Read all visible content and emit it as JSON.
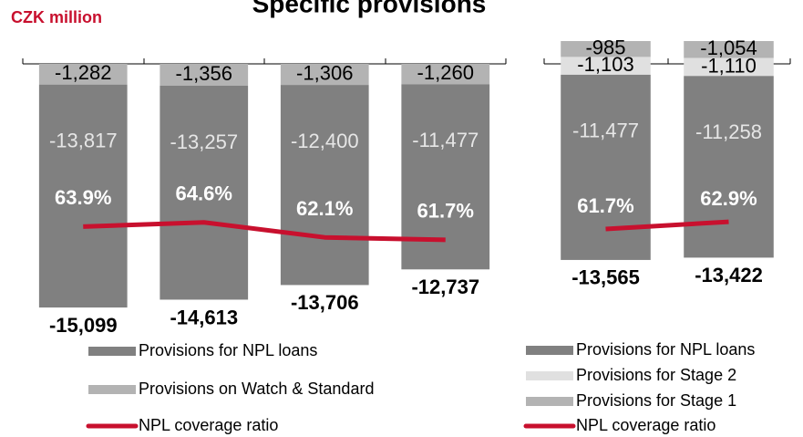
{
  "chart_data": [
    {
      "type": "bar",
      "title": "Specific provisions",
      "y_label": "CZK million",
      "stacked": true,
      "categories": [
        null,
        null,
        null,
        null
      ],
      "ylim": [
        -16000,
        0
      ],
      "y2lim": [
        48,
        91
      ],
      "series": [
        {
          "name": "Provisions for NPL loans",
          "color": "#808080",
          "values": [
            -13817,
            -13257,
            -12400,
            -11477
          ],
          "value_labels": [
            "-13,817",
            "-13,257",
            "-12,400",
            "-11,477"
          ]
        },
        {
          "name": "Provisions on Watch & Standard",
          "color": "#b3b3b3",
          "values": [
            -1282,
            -1356,
            -1306,
            -1260
          ],
          "value_labels": [
            "-1,282",
            "-1,356",
            "-1,306",
            "-1,260"
          ]
        },
        {
          "name": "NPL coverage ratio",
          "type": "line",
          "axis": "y2",
          "color": "#c8102e",
          "values": [
            63.9,
            64.6,
            62.1,
            61.7
          ],
          "value_labels": [
            "63.9%",
            "64.6%",
            "62.1%",
            "61.7%"
          ]
        }
      ],
      "totals": {
        "values": [
          -15099,
          -14613,
          -13706,
          -12737
        ],
        "value_labels": [
          "-15,099",
          "-14,613",
          "-13,706",
          "-12,737"
        ]
      }
    },
    {
      "type": "bar",
      "stacked": true,
      "categories": [
        null,
        null
      ],
      "ylim": [
        -16000,
        0
      ],
      "y2lim": [
        50,
        93
      ],
      "series": [
        {
          "name": "Provisions for NPL loans",
          "color": "#808080",
          "values": [
            -11477,
            -11258
          ],
          "value_labels": [
            "-11,477",
            "-11,258"
          ]
        },
        {
          "name": "Provisions for Stage 2",
          "color": "#e0e0e0",
          "values": [
            -1103,
            -1110
          ],
          "value_labels": [
            "-1,103",
            "-1,110"
          ]
        },
        {
          "name": "Provisions for Stage 1",
          "color": "#b3b3b3",
          "values": [
            -985,
            -1054
          ],
          "value_labels": [
            "-985",
            "-1,054"
          ]
        },
        {
          "name": "NPL coverage ratio",
          "type": "line",
          "axis": "y2",
          "color": "#c8102e",
          "values": [
            61.7,
            62.9
          ],
          "value_labels": [
            "61.7%",
            "62.9%"
          ]
        }
      ],
      "totals": {
        "values": [
          -13565,
          -13422
        ],
        "value_labels": [
          "-13,565",
          "-13,422"
        ]
      }
    }
  ]
}
